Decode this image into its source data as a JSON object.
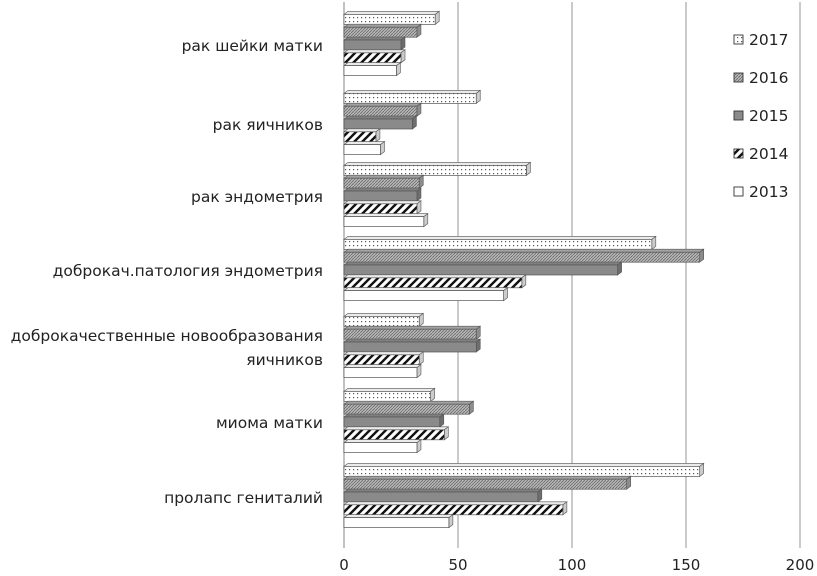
{
  "chart_data": {
    "type": "bar",
    "orientation": "horizontal",
    "style": "3d-clustered",
    "categories": [
      "рак шейки матки",
      "рак яичников",
      "рак эндометрия",
      "доброкач.патология эндометрия",
      "доброкачественные новообразования яичников",
      "миома матки",
      "пролапс гениталий"
    ],
    "category_lines": [
      [
        "рак шейки матки"
      ],
      [
        "рак яичников"
      ],
      [
        "рак эндометрия"
      ],
      [
        "доброкач.патология эндометрия"
      ],
      [
        "доброкачественные новообразования",
        "яичников"
      ],
      [
        "миома матки"
      ],
      [
        "пролапс гениталий"
      ]
    ],
    "series": [
      {
        "name": "2017",
        "values": [
          40,
          58,
          80,
          135,
          33,
          38,
          156
        ],
        "pattern": "dots",
        "color": "#ffffff"
      },
      {
        "name": "2016",
        "values": [
          32,
          32,
          33,
          156,
          58,
          55,
          124
        ],
        "pattern": "fine-diagonal",
        "color": "#b0b0b0"
      },
      {
        "name": "2015",
        "values": [
          25,
          30,
          32,
          120,
          58,
          42,
          85
        ],
        "pattern": "solid",
        "color": "#8a8a8a"
      },
      {
        "name": "2014",
        "values": [
          25,
          14,
          32,
          78,
          33,
          44,
          96
        ],
        "pattern": "wide-diagonal",
        "color": "#ffffff"
      },
      {
        "name": "2013",
        "values": [
          23,
          16,
          35,
          70,
          32,
          32,
          46
        ],
        "pattern": "none",
        "color": "#ffffff"
      }
    ],
    "legend": [
      "2017",
      "2016",
      "2015",
      "2014",
      "2013"
    ],
    "legend_position": "right",
    "xlim": [
      0,
      200
    ],
    "x_ticks": [
      "0",
      "50",
      "100",
      "150",
      "200"
    ],
    "grid": true,
    "title": "",
    "xlabel": "",
    "ylabel": ""
  }
}
